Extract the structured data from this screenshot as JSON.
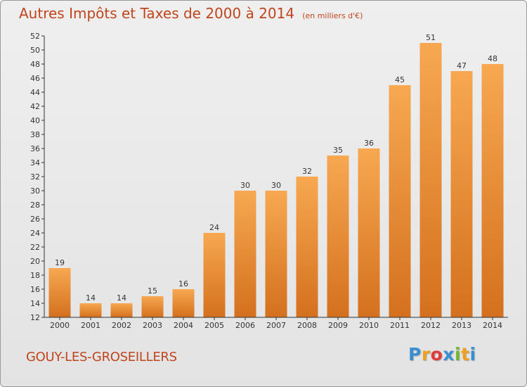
{
  "title": "Autres Impôts et Taxes de 2000 à 2014",
  "unit_label": "(en milliers d'€)",
  "location": "GOUY-LES-GROSEILLERS",
  "logo": {
    "letters": [
      "P",
      "r",
      "o",
      "x",
      "i",
      "t",
      "i"
    ],
    "colors": [
      "#3a8fd0",
      "#f0a020",
      "#e03c3c",
      "#3a8fd0",
      "#70b830",
      "#f0a020",
      "#3a8fd0"
    ]
  },
  "colors": {
    "bar_top": "#f7a851",
    "bar_bottom": "#d4701e",
    "text": "#c0451c",
    "axis": "#333333"
  },
  "chart_data": {
    "type": "bar",
    "title": "Autres Impôts et Taxes de 2000 à 2014",
    "xlabel": "",
    "ylabel": "",
    "ylim": [
      12,
      52
    ],
    "ytick_step": 2,
    "grid": false,
    "categories": [
      "2000",
      "2001",
      "2002",
      "2003",
      "2004",
      "2005",
      "2006",
      "2007",
      "2008",
      "2009",
      "2010",
      "2011",
      "2012",
      "2013",
      "2014"
    ],
    "values": [
      19,
      14,
      14,
      15,
      16,
      24,
      30,
      30,
      32,
      35,
      36,
      45,
      51,
      47,
      48
    ],
    "data_labels": [
      "19",
      "14",
      "14",
      "15",
      "16",
      "24",
      "30",
      "30",
      "32",
      "35",
      "36",
      "45",
      "51",
      "47",
      "48"
    ]
  }
}
